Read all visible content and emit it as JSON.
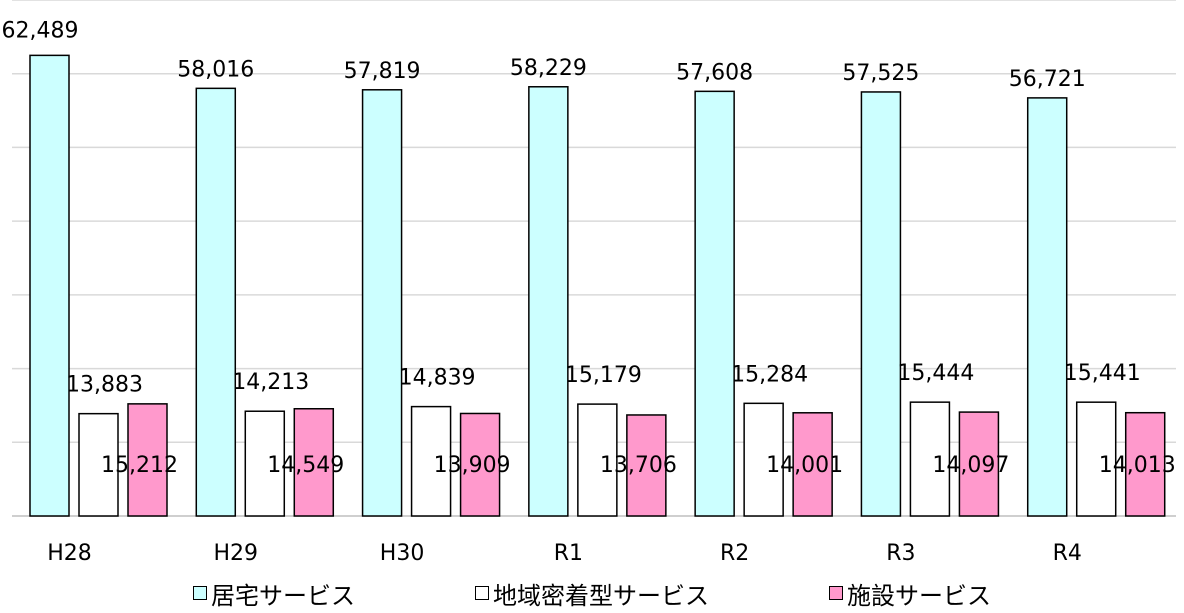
{
  "chart_data": {
    "type": "bar",
    "categories": [
      "H28",
      "H29",
      "H30",
      "R1",
      "R2",
      "R3",
      "R4"
    ],
    "series": [
      {
        "name": "居宅サービス",
        "color": "#ccffff",
        "values": [
          62489,
          58016,
          57819,
          58229,
          57608,
          57525,
          56721
        ],
        "labels": [
          "62,489",
          "58,016",
          "57,819",
          "58,229",
          "57,608",
          "57,525",
          "56,721"
        ]
      },
      {
        "name": "地域密着型サービス",
        "color": "#ffffff",
        "values": [
          13883,
          14213,
          14839,
          15179,
          15284,
          15444,
          15441
        ],
        "labels": [
          "13,883",
          "14,213",
          "14,839",
          "15,179",
          "15,284",
          "15,444",
          "15,441"
        ]
      },
      {
        "name": "施設サービス",
        "color": "#ff99cc",
        "values": [
          15212,
          14549,
          13909,
          13706,
          14001,
          14097,
          14013
        ],
        "labels": [
          "15,212",
          "14,549",
          "13,909",
          "13,706",
          "14,001",
          "14,097",
          "14,013"
        ]
      }
    ],
    "ylim": [
      0,
      70000
    ],
    "grid": true,
    "legend_position": "bottom"
  },
  "legend": {
    "items": [
      {
        "symbol": "□",
        "label": "居宅サービス",
        "color": "#ccffff"
      },
      {
        "symbol": "□",
        "label": "地域密着型サービス",
        "color": "#ffffff"
      },
      {
        "symbol": "□",
        "label": "施設サービス",
        "color": "#ff99cc"
      }
    ]
  }
}
